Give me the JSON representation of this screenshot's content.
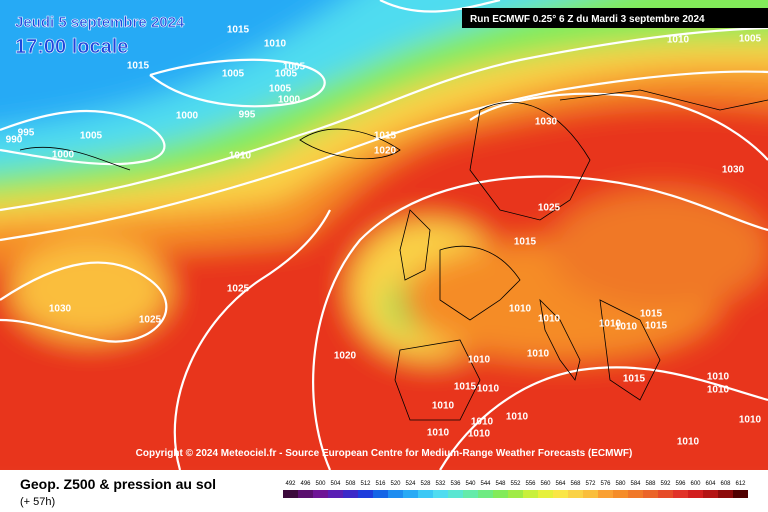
{
  "header": {
    "date": "Jeudi 5 septembre 2024",
    "time": "17:00 locale",
    "run": "Run ECMWF 0.25° 6 Z du Mardi 3 septembre 2024"
  },
  "copyright": "Copyright © 2024 Meteociel.fr - Source European Centre for Medium-Range Weather Forecasts (ECMWF)",
  "footer": {
    "title": "Geop. Z500 & pression au sol",
    "lead": "(+ 57h)"
  },
  "scale": {
    "labels": [
      492,
      496,
      500,
      504,
      508,
      512,
      516,
      520,
      524,
      528,
      532,
      536,
      540,
      544,
      548,
      552,
      556,
      560,
      564,
      568,
      572,
      576,
      580,
      584,
      588,
      592,
      596,
      600,
      604,
      608,
      612
    ],
    "colors": [
      "#3c0a3c",
      "#5a0f6e",
      "#6e1496",
      "#5a1eb4",
      "#3c28c8",
      "#1e3cdc",
      "#1464e6",
      "#1e8cf0",
      "#28aaf5",
      "#3cc8f5",
      "#50dcf0",
      "#5ae6d2",
      "#64ebaa",
      "#6eeb82",
      "#82eb5a",
      "#a0eb46",
      "#c8f03c",
      "#e6f03c",
      "#fae646",
      "#fad246",
      "#fabe3c",
      "#faa032",
      "#f58c28",
      "#f07828",
      "#eb6428",
      "#e64b28",
      "#e13228",
      "#d21e1e",
      "#b41414",
      "#8c0a0a",
      "#500000"
    ]
  },
  "isobar_labels": [
    "1015",
    "1010",
    "1015",
    "1005",
    "1005",
    "1005",
    "1005",
    "1000",
    "1000",
    "995",
    "995",
    "990",
    "1005",
    "1000",
    "1010",
    "1015",
    "1020",
    "1030",
    "1030",
    "1025",
    "1015",
    "1010",
    "1005",
    "1030",
    "1025",
    "1025",
    "1020",
    "1010",
    "1010",
    "1010",
    "1010",
    "1015",
    "1015",
    "1010",
    "1010",
    "1015",
    "1010",
    "1010",
    "1015",
    "1010",
    "1010",
    "1010",
    "1010",
    "1010",
    "1010",
    "1010",
    "1010"
  ]
}
